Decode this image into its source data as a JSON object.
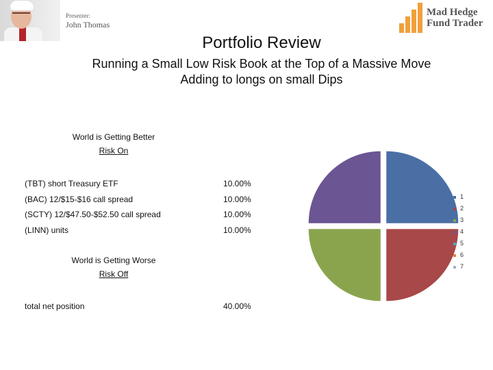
{
  "header": {
    "presenter_label": "Presenter:",
    "presenter_name": "John Thomas",
    "logo_line1": "Mad Hedge",
    "logo_line2": "Fund Trader"
  },
  "title": "Portfolio Review",
  "subtitle_line1": "Running a Small Low Risk Book at the Top of a Massive Move",
  "subtitle_line2": "Adding to longs on small Dips",
  "better": {
    "line1": "World is Getting Better",
    "line2": "Risk On"
  },
  "positions": [
    {
      "name": "(TBT) short Treasury ETF",
      "pct": "10.00%"
    },
    {
      "name": "(BAC) 12/$15-$16 call spread",
      "pct": "10.00%"
    },
    {
      "name": "(SCTY) 12/$47.50-$52.50 call spread",
      "pct": "10.00%"
    },
    {
      "name": "(LINN) units",
      "pct": "10.00%"
    }
  ],
  "worse": {
    "line1": "World is Getting Worse",
    "line2": "Risk Off"
  },
  "total": {
    "name": "total net position",
    "pct": "40.00%"
  },
  "chart_data": {
    "type": "pie",
    "categories": [
      "1",
      "2",
      "3",
      "4",
      "5",
      "6",
      "7"
    ],
    "values": [
      10,
      10,
      10,
      10,
      0,
      0,
      0
    ],
    "colors": [
      "#4a6fa5",
      "#a84848",
      "#8aa44e",
      "#6b5592",
      "#4aa7c2",
      "#e0883a",
      "#9bb4d8"
    ],
    "legend": "right"
  }
}
